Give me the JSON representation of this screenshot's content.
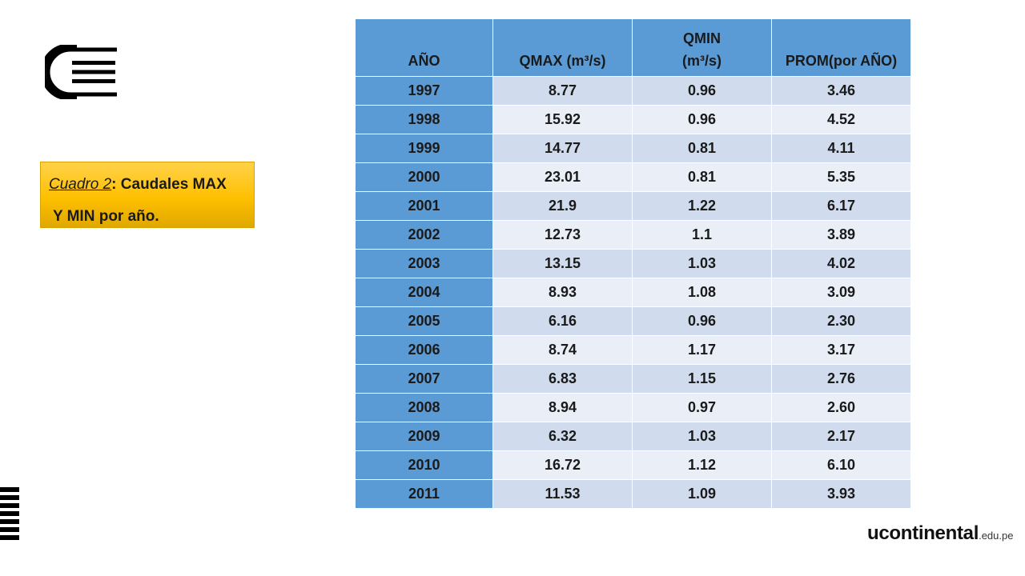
{
  "caption": {
    "ref": "Cuadro 2",
    "after_ref": ": Caudales MAX",
    "line2": "Y MIN por año."
  },
  "table": {
    "headers": [
      "AÑO",
      "QMAX (m³/s)",
      "QMIN (m³/s)",
      "PROM(por AÑO)"
    ],
    "header_qmin_line1": "QMIN",
    "header_qmin_line2": "(m³/s)",
    "rows": [
      [
        "1997",
        "8.77",
        "0.96",
        "3.46"
      ],
      [
        "1998",
        "15.92",
        "0.96",
        "4.52"
      ],
      [
        "1999",
        "14.77",
        "0.81",
        "4.11"
      ],
      [
        "2000",
        "23.01",
        "0.81",
        "5.35"
      ],
      [
        "2001",
        "21.9",
        "1.22",
        "6.17"
      ],
      [
        "2002",
        "12.73",
        "1.1",
        "3.89"
      ],
      [
        "2003",
        "13.15",
        "1.03",
        "4.02"
      ],
      [
        "2004",
        "8.93",
        "1.08",
        "3.09"
      ],
      [
        "2005",
        "6.16",
        "0.96",
        "2.30"
      ],
      [
        "2006",
        "8.74",
        "1.17",
        "3.17"
      ],
      [
        "2007",
        "6.83",
        "1.15",
        "2.76"
      ],
      [
        "2008",
        "8.94",
        "0.97",
        "2.60"
      ],
      [
        "2009",
        "6.32",
        "1.03",
        "2.17"
      ],
      [
        "2010",
        "16.72",
        "1.12",
        "6.10"
      ],
      [
        "2011",
        "11.53",
        "1.09",
        "3.93"
      ]
    ]
  },
  "brand": {
    "main": "ucontinental",
    "suffix": ".edu.pe"
  },
  "colors": {
    "header_blue": "#5b9bd5",
    "row_band_dark": "#d0dcee",
    "row_band_light": "#e9eef7",
    "caption_gold": "#ffc000"
  }
}
